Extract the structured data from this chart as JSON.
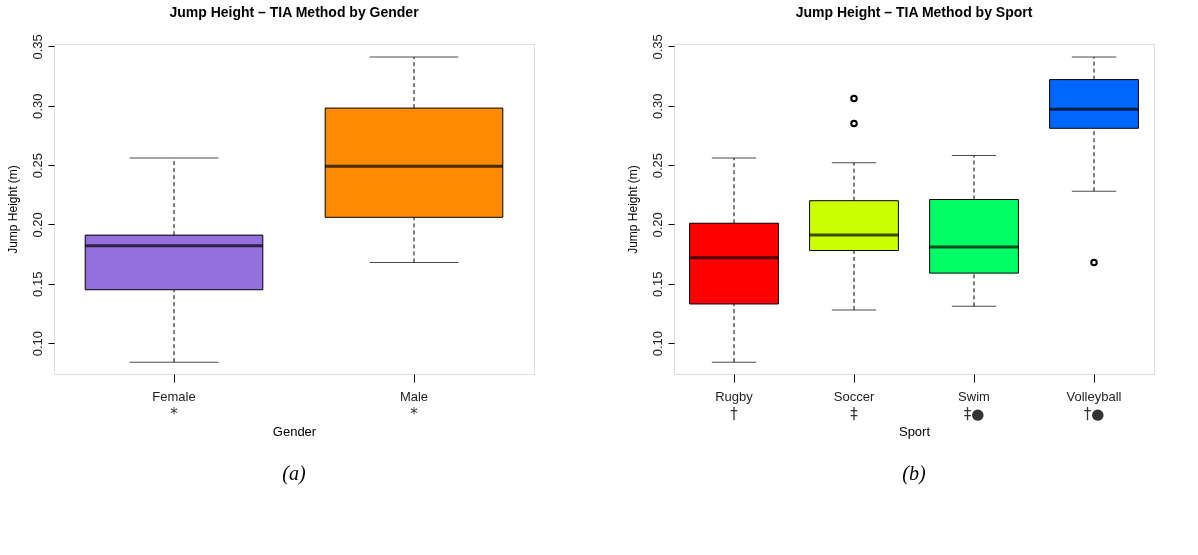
{
  "chart_data": [
    {
      "type": "box",
      "title": "Jump Height – TIA Method by Gender",
      "xlabel": "Gender",
      "ylabel": "Jump Height (m)",
      "categories": [
        "Female",
        "Male"
      ],
      "colors": [
        "#9370db",
        "#ff8c00"
      ],
      "boxes": [
        {
          "low": 0.084,
          "q1": 0.145,
          "median": 0.182,
          "q3": 0.191,
          "high": 0.256
        },
        {
          "low": 0.168,
          "q1": 0.206,
          "median": 0.249,
          "q3": 0.298,
          "high": 0.341
        }
      ],
      "ylim": [
        0.074,
        0.352
      ],
      "yticks": [
        {
          "value": 0.1,
          "label": "0.10"
        },
        {
          "value": 0.15,
          "label": "0.15"
        },
        {
          "value": 0.2,
          "label": "0.20"
        },
        {
          "value": 0.25,
          "label": "0.25"
        },
        {
          "value": 0.3,
          "label": "0.30"
        },
        {
          "value": 0.35,
          "label": "0.35"
        }
      ],
      "annotations": [
        "*",
        "*",
        "(a)"
      ]
    },
    {
      "type": "box",
      "title": "Jump Height – TIA Method by Sport",
      "xlabel": "Sport",
      "ylabel": "Jump Height (m)",
      "categories": [
        "Rugby",
        "Soccer",
        "Swim",
        "Volleyball"
      ],
      "colors": [
        "#ff0000",
        "#ccff00",
        "#00ff66",
        "#0066ff"
      ],
      "boxes": [
        {
          "low": 0.084,
          "q1": 0.133,
          "median": 0.172,
          "q3": 0.201,
          "high": 0.256
        },
        {
          "low": 0.128,
          "q1": 0.178,
          "median": 0.191,
          "q3": 0.22,
          "high": 0.252,
          "outliers": [
            0.306,
            0.285
          ]
        },
        {
          "low": 0.131,
          "q1": 0.159,
          "median": 0.181,
          "q3": 0.221,
          "high": 0.258
        },
        {
          "low": 0.228,
          "q1": 0.281,
          "median": 0.297,
          "q3": 0.322,
          "high": 0.341,
          "outliers": [
            0.168
          ]
        }
      ],
      "ylim": [
        0.074,
        0.352
      ],
      "yticks": [
        {
          "value": 0.1,
          "label": "0.10"
        },
        {
          "value": 0.15,
          "label": "0.15"
        },
        {
          "value": 0.2,
          "label": "0.20"
        },
        {
          "value": 0.25,
          "label": "0.25"
        },
        {
          "value": 0.3,
          "label": "0.30"
        },
        {
          "value": 0.35,
          "label": "0.35"
        }
      ],
      "annotations": [
        "†",
        "‡",
        "‡●",
        "†●",
        "(b)"
      ]
    }
  ]
}
